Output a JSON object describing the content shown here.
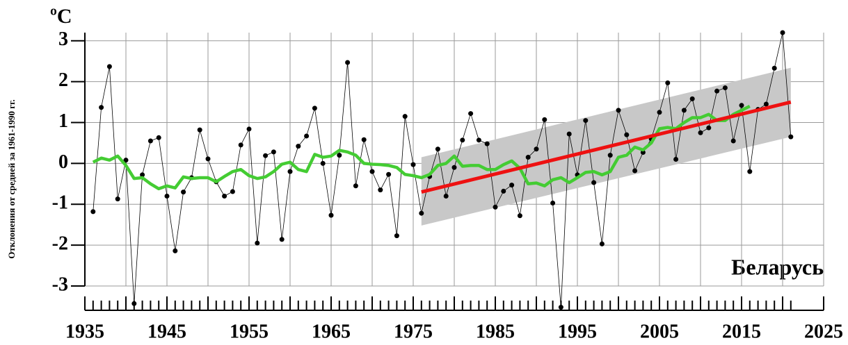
{
  "chart_data": {
    "type": "line",
    "unit": "ºC",
    "ylabel": "Отклонения от средней за 1961-1990 гг.",
    "annotation": "Беларусь",
    "x": [
      1936,
      1937,
      1938,
      1939,
      1940,
      1941,
      1942,
      1943,
      1944,
      1945,
      1946,
      1947,
      1948,
      1949,
      1950,
      1951,
      1952,
      1953,
      1954,
      1955,
      1956,
      1957,
      1958,
      1959,
      1960,
      1961,
      1962,
      1963,
      1964,
      1965,
      1966,
      1967,
      1968,
      1969,
      1970,
      1971,
      1972,
      1973,
      1974,
      1975,
      1976,
      1977,
      1978,
      1979,
      1980,
      1981,
      1982,
      1983,
      1984,
      1985,
      1986,
      1987,
      1988,
      1989,
      1990,
      1991,
      1992,
      1993,
      1994,
      1995,
      1996,
      1997,
      1998,
      1999,
      2000,
      2001,
      2002,
      2003,
      2004,
      2005,
      2006,
      2007,
      2008,
      2009,
      2010,
      2011,
      2012,
      2013,
      2014,
      2015,
      2016,
      2017,
      2018,
      2019,
      2020,
      2021
    ],
    "series": [
      {
        "color": "#000000",
        "values": [
          -1.18,
          1.37,
          2.37,
          -0.87,
          0.08,
          -3.43,
          -0.28,
          0.55,
          0.63,
          -0.8,
          -2.14,
          -0.7,
          -0.35,
          0.82,
          0.11,
          -0.45,
          -0.8,
          -0.69,
          0.45,
          0.84,
          -1.95,
          0.19,
          0.28,
          -1.86,
          -0.2,
          0.42,
          0.67,
          1.35,
          0.0,
          -1.27,
          0.2,
          2.47,
          -0.55,
          0.58,
          -0.2,
          -0.65,
          -0.27,
          -1.77,
          1.15,
          -0.03,
          -1.22,
          -0.32,
          0.35,
          -0.8,
          -0.1,
          0.57,
          1.22,
          0.57,
          0.48,
          -1.07,
          -0.68,
          -0.53,
          -1.28,
          0.15,
          0.35,
          1.07,
          -0.97,
          -3.52,
          0.72,
          -0.28,
          1.05,
          -0.47,
          -1.97,
          0.2,
          1.3,
          0.7,
          -0.18,
          0.27,
          0.6,
          1.25,
          1.97,
          0.1,
          1.3,
          1.58,
          0.75,
          0.87,
          1.77,
          1.85,
          0.55,
          1.42,
          -0.2,
          1.32,
          1.45,
          2.33,
          3.2,
          0.65
        ]
      },
      {
        "color": "#44cc33",
        "values": [
          0.03,
          0.13,
          0.08,
          0.18,
          -0.05,
          -0.37,
          -0.35,
          -0.5,
          -0.62,
          -0.55,
          -0.6,
          -0.33,
          -0.37,
          -0.35,
          -0.35,
          -0.45,
          -0.32,
          -0.2,
          -0.15,
          -0.3,
          -0.37,
          -0.33,
          -0.2,
          -0.02,
          0.03,
          -0.15,
          -0.2,
          0.22,
          0.15,
          0.18,
          0.32,
          0.28,
          0.2,
          0.0,
          -0.02,
          -0.03,
          -0.05,
          -0.1,
          -0.27,
          -0.3,
          -0.35,
          -0.27,
          -0.05,
          0.0,
          0.18,
          -0.07,
          -0.05,
          -0.05,
          -0.15,
          -0.15,
          -0.03,
          0.06,
          -0.12,
          -0.5,
          -0.48,
          -0.55,
          -0.4,
          -0.35,
          -0.47,
          -0.35,
          -0.22,
          -0.2,
          -0.28,
          -0.2,
          0.15,
          0.2,
          0.4,
          0.33,
          0.5,
          0.85,
          0.88,
          0.85,
          1.0,
          1.12,
          1.12,
          1.2,
          1.05,
          1.05,
          1.2,
          1.3,
          1.4,
          null,
          null,
          null,
          null,
          null
        ]
      }
    ],
    "trend": {
      "color": "#ee1111",
      "x": [
        1976,
        2021
      ],
      "values": [
        -0.7,
        1.5
      ]
    },
    "band": {
      "color": "#c8c8c8",
      "x": [
        1976,
        2021
      ],
      "lower": [
        -1.52,
        0.65
      ],
      "upper": [
        0.15,
        2.34
      ]
    },
    "xlim": [
      1935,
      2025
    ],
    "xticks": [
      1935,
      1945,
      1955,
      1965,
      1975,
      1985,
      1995,
      2005,
      2015,
      2025
    ],
    "xminor": [
      1940,
      1950,
      1960,
      1970,
      1980,
      1990,
      2000,
      2010,
      2020
    ],
    "ylim": [
      -3,
      3.2
    ],
    "yticks": [
      -3,
      -2,
      -1,
      0,
      1,
      2,
      3
    ],
    "grid": true
  }
}
